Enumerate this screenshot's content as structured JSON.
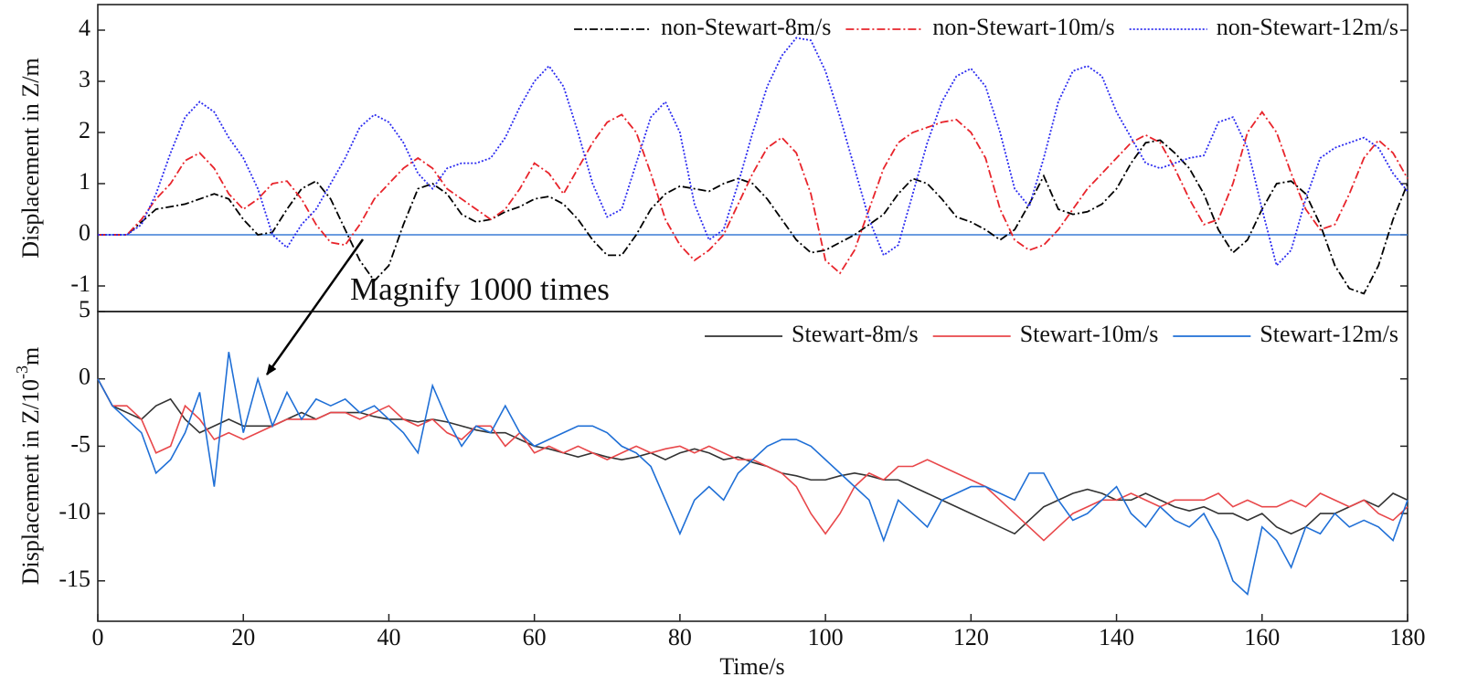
{
  "chart_data": [
    {
      "type": "line",
      "y_label": "Displacement in Z/m",
      "annotation": "Magnify 1000 times",
      "legend": "upper right",
      "xlim": [
        0,
        180
      ],
      "ylim": [
        -1.5,
        4.5
      ],
      "yticks": [
        -1,
        0,
        1,
        2,
        3,
        4
      ],
      "reference_line": {
        "value": 0,
        "color": "#3a7bd5"
      },
      "x": [
        0,
        2,
        4,
        6,
        8,
        10,
        12,
        14,
        16,
        18,
        20,
        22,
        24,
        26,
        28,
        30,
        32,
        34,
        36,
        38,
        40,
        42,
        44,
        46,
        48,
        50,
        52,
        54,
        56,
        58,
        60,
        62,
        64,
        66,
        68,
        70,
        72,
        74,
        76,
        78,
        80,
        82,
        84,
        86,
        88,
        90,
        92,
        94,
        96,
        98,
        100,
        102,
        104,
        106,
        108,
        110,
        112,
        114,
        116,
        118,
        120,
        122,
        124,
        126,
        128,
        130,
        132,
        134,
        136,
        138,
        140,
        142,
        144,
        146,
        148,
        150,
        152,
        154,
        156,
        158,
        160,
        162,
        164,
        166,
        168,
        170,
        172,
        174,
        176,
        178,
        180
      ],
      "series": [
        {
          "name": "non-Stewart-8m/s",
          "color": "#000000",
          "line_style": "dashdot",
          "values": [
            0,
            0,
            0,
            0.25,
            0.5,
            0.55,
            0.6,
            0.7,
            0.8,
            0.7,
            0.3,
            0,
            0.05,
            0.5,
            0.9,
            1.05,
            0.7,
            0.1,
            -0.5,
            -0.9,
            -0.6,
            0.2,
            0.9,
            1.0,
            0.8,
            0.4,
            0.25,
            0.3,
            0.45,
            0.55,
            0.7,
            0.75,
            0.6,
            0.3,
            -0.1,
            -0.4,
            -0.4,
            0,
            0.5,
            0.8,
            0.95,
            0.9,
            0.85,
            1.0,
            1.1,
            1.0,
            0.7,
            0.3,
            -0.1,
            -0.35,
            -0.3,
            -0.15,
            0,
            0.2,
            0.4,
            0.8,
            1.1,
            1.0,
            0.7,
            0.35,
            0.25,
            0.1,
            -0.1,
            0.1,
            0.6,
            1.15,
            0.5,
            0.4,
            0.45,
            0.6,
            0.9,
            1.4,
            1.8,
            1.85,
            1.6,
            1.3,
            0.8,
            0.1,
            -0.35,
            -0.1,
            0.5,
            1.0,
            1.05,
            0.8,
            0.2,
            -0.6,
            -1.05,
            -1.15,
            -0.6,
            0.3,
            1.0
          ]
        },
        {
          "name": "non-Stewart-10m/s",
          "color": "#e8242b",
          "line_style": "dashdot",
          "values": [
            0,
            0,
            0,
            0.3,
            0.7,
            1.0,
            1.45,
            1.6,
            1.3,
            0.8,
            0.5,
            0.7,
            1.0,
            1.05,
            0.7,
            0.2,
            -0.15,
            -0.2,
            0.2,
            0.7,
            1.0,
            1.3,
            1.5,
            1.3,
            0.9,
            0.7,
            0.5,
            0.3,
            0.5,
            0.9,
            1.4,
            1.2,
            0.8,
            1.3,
            1.8,
            2.2,
            2.35,
            2.0,
            1.2,
            0.3,
            -0.2,
            -0.5,
            -0.3,
            0,
            0.6,
            1.2,
            1.7,
            1.9,
            1.6,
            0.8,
            -0.5,
            -0.75,
            -0.3,
            0.5,
            1.3,
            1.8,
            2.0,
            2.1,
            2.2,
            2.25,
            2.0,
            1.5,
            0.5,
            -0.1,
            -0.3,
            -0.2,
            0.1,
            0.5,
            0.9,
            1.2,
            1.5,
            1.8,
            1.95,
            1.8,
            1.3,
            0.7,
            0.2,
            0.3,
            1.0,
            2.0,
            2.4,
            2.0,
            1.2,
            0.5,
            0.1,
            0.2,
            0.8,
            1.5,
            1.85,
            1.6,
            1.1
          ]
        },
        {
          "name": "non-Stewart-12m/s",
          "color": "#2b2bf0",
          "line_style": "dotted",
          "values": [
            0,
            0,
            0,
            0.2,
            0.8,
            1.6,
            2.3,
            2.6,
            2.4,
            1.9,
            1.5,
            0.9,
            0,
            -0.25,
            0.2,
            0.5,
            1.0,
            1.5,
            2.1,
            2.35,
            2.2,
            1.8,
            1.2,
            0.9,
            1.3,
            1.4,
            1.4,
            1.5,
            1.9,
            2.5,
            3.0,
            3.3,
            2.9,
            2.0,
            1.0,
            0.35,
            0.5,
            1.4,
            2.3,
            2.6,
            2.0,
            0.6,
            -0.1,
            0.1,
            1.0,
            2.0,
            2.9,
            3.5,
            3.85,
            3.8,
            3.2,
            2.3,
            1.3,
            0.3,
            -0.4,
            -0.2,
            0.8,
            1.8,
            2.6,
            3.1,
            3.25,
            2.9,
            2.0,
            0.9,
            0.55,
            1.5,
            2.6,
            3.2,
            3.3,
            3.1,
            2.4,
            1.9,
            1.4,
            1.3,
            1.4,
            1.5,
            1.55,
            2.2,
            2.3,
            1.7,
            0.5,
            -0.6,
            -0.3,
            0.7,
            1.5,
            1.7,
            1.8,
            1.9,
            1.7,
            1.2,
            0.85
          ]
        }
      ]
    },
    {
      "type": "line",
      "y_label": {
        "text": "Displacement in Z/10",
        "superscript": "-3",
        "unit": "m"
      },
      "x_label": "Time/s",
      "legend": "upper right",
      "xlim": [
        0,
        180
      ],
      "xticks": [
        0,
        20,
        40,
        60,
        80,
        100,
        120,
        140,
        160,
        180
      ],
      "ylim": [
        -18,
        5
      ],
      "yticks": [
        -15,
        -10,
        -5,
        0,
        5
      ],
      "x": [
        0,
        2,
        4,
        6,
        8,
        10,
        12,
        14,
        16,
        18,
        20,
        22,
        24,
        26,
        28,
        30,
        32,
        34,
        36,
        38,
        40,
        42,
        44,
        46,
        48,
        50,
        52,
        54,
        56,
        58,
        60,
        62,
        64,
        66,
        68,
        70,
        72,
        74,
        76,
        78,
        80,
        82,
        84,
        86,
        88,
        90,
        92,
        94,
        96,
        98,
        100,
        102,
        104,
        106,
        108,
        110,
        112,
        114,
        116,
        118,
        120,
        122,
        124,
        126,
        128,
        130,
        132,
        134,
        136,
        138,
        140,
        142,
        144,
        146,
        148,
        150,
        152,
        154,
        156,
        158,
        160,
        162,
        164,
        166,
        168,
        170,
        172,
        174,
        176,
        178,
        180
      ],
      "series": [
        {
          "name": "Stewart-8m/s",
          "color": "#333333",
          "line_style": "solid",
          "values": [
            0,
            -2,
            -2.5,
            -3,
            -2,
            -1.5,
            -3,
            -4,
            -3.5,
            -3,
            -3.5,
            -3.5,
            -3.5,
            -3,
            -2.5,
            -3,
            -2.5,
            -2.5,
            -2.5,
            -2.8,
            -3,
            -3,
            -3.2,
            -3,
            -3.2,
            -3.5,
            -3.8,
            -4,
            -4,
            -4.5,
            -5,
            -5.2,
            -5.5,
            -5.8,
            -5.5,
            -5.8,
            -6,
            -5.8,
            -5.5,
            -6,
            -5.5,
            -5.2,
            -5.5,
            -6,
            -5.8,
            -6.2,
            -6.5,
            -7,
            -7.2,
            -7.5,
            -7.5,
            -7.2,
            -7,
            -7.2,
            -7.5,
            -7.5,
            -8,
            -8.5,
            -9,
            -9.5,
            -10,
            -10.5,
            -11,
            -11.5,
            -10.5,
            -9.5,
            -9,
            -8.5,
            -8.2,
            -8.5,
            -9,
            -9,
            -8.5,
            -9,
            -9.5,
            -9.8,
            -9.5,
            -10,
            -10,
            -10.5,
            -10,
            -11,
            -11.5,
            -11,
            -10,
            -10,
            -9.5,
            -9,
            -9.5,
            -8.5,
            -9
          ]
        },
        {
          "name": "Stewart-10m/s",
          "color": "#e8474a",
          "line_style": "solid",
          "values": [
            0,
            -2,
            -2,
            -3,
            -5.5,
            -5,
            -2,
            -3,
            -4.5,
            -4,
            -4.5,
            -4,
            -3.5,
            -3,
            -3,
            -3,
            -2.5,
            -2.5,
            -3,
            -2.5,
            -2,
            -3,
            -3.5,
            -3,
            -4,
            -4.5,
            -3.5,
            -3.5,
            -5,
            -4,
            -5.5,
            -5,
            -5.5,
            -5,
            -5.5,
            -6,
            -5.5,
            -5,
            -5.5,
            -5.2,
            -5,
            -5.5,
            -5,
            -5.5,
            -6,
            -6,
            -6.5,
            -7,
            -8,
            -10,
            -11.5,
            -10,
            -8,
            -7,
            -7.5,
            -6.5,
            -6.5,
            -6,
            -6.5,
            -7,
            -7.5,
            -8,
            -9,
            -10,
            -11,
            -12,
            -11,
            -10,
            -9.5,
            -9,
            -9,
            -8.5,
            -9,
            -9.5,
            -9,
            -9,
            -9,
            -8.5,
            -9.5,
            -9,
            -9.5,
            -9.5,
            -9,
            -9.5,
            -8.5,
            -9,
            -9.5,
            -9,
            -10,
            -10.5,
            -9.5
          ]
        },
        {
          "name": "Stewart-12m/s",
          "color": "#1f6fd6",
          "line_style": "solid",
          "values": [
            0,
            -2,
            -3,
            -4,
            -7,
            -6,
            -4,
            -1,
            -8,
            2,
            -4,
            0,
            -3.5,
            -1,
            -3,
            -1.5,
            -2,
            -1.5,
            -2.5,
            -2,
            -3,
            -4,
            -5.5,
            -0.5,
            -3,
            -5,
            -3.5,
            -4,
            -2,
            -4,
            -5,
            -4.5,
            -4,
            -3.5,
            -3.5,
            -4,
            -5,
            -5.5,
            -6.5,
            -9,
            -11.5,
            -9,
            -8,
            -9,
            -7,
            -6,
            -5,
            -4.5,
            -4.5,
            -5,
            -6,
            -7,
            -8,
            -9,
            -12,
            -9,
            -10,
            -11,
            -9,
            -8.5,
            -8,
            -8,
            -8.5,
            -9,
            -7,
            -7,
            -9,
            -10.5,
            -10,
            -9,
            -8,
            -10,
            -11,
            -9.5,
            -10.5,
            -11,
            -10,
            -12,
            -15,
            -16,
            -11,
            -12,
            -14,
            -11,
            -11.5,
            -10,
            -11,
            -10.5,
            -11,
            -12,
            -9
          ]
        }
      ]
    }
  ]
}
